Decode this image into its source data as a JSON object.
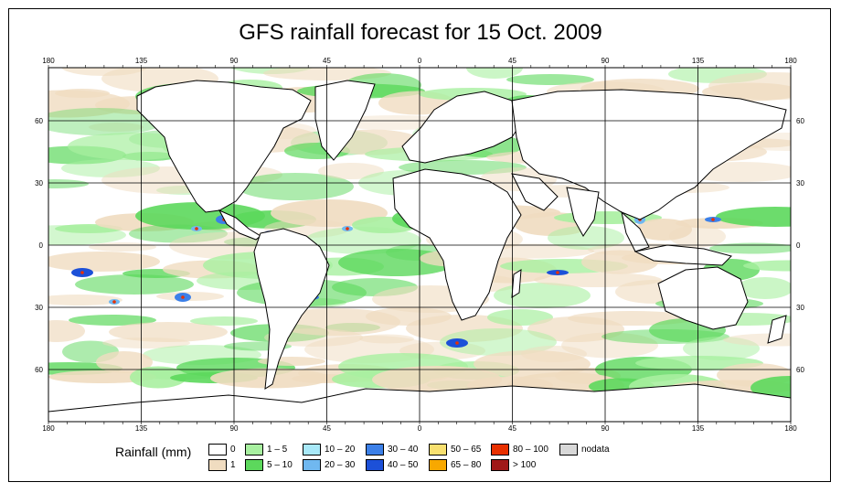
{
  "title": "GFS rainfall forecast for 15 Oct. 2009",
  "axes": {
    "lon_labels": [
      "180",
      "135",
      "90",
      "45",
      "0",
      "45",
      "90",
      "135",
      "180"
    ],
    "lat_labels": [
      "60",
      "30",
      "0",
      "30",
      "60"
    ]
  },
  "legend": {
    "title": "Rainfall (mm)",
    "items": [
      {
        "label": "0",
        "color": "#ffffff"
      },
      {
        "label": "1",
        "color": "#f0dcc0"
      },
      {
        "label": "1 – 5",
        "color": "#a8f0a0"
      },
      {
        "label": "5 – 10",
        "color": "#5cd85c"
      },
      {
        "label": "10 – 20",
        "color": "#a8e8f8"
      },
      {
        "label": "20 – 30",
        "color": "#70b8f0"
      },
      {
        "label": "30 – 40",
        "color": "#3c80e8"
      },
      {
        "label": "40 – 50",
        "color": "#1c50d8"
      },
      {
        "label": "50 – 65",
        "color": "#f8e070"
      },
      {
        "label": "65 – 80",
        "color": "#f8a800"
      },
      {
        "label": "80 – 100",
        "color": "#e83000"
      },
      {
        "label": "> 100",
        "color": "#a01818"
      },
      {
        "label": "nodata",
        "color": "#d8d8d8"
      }
    ]
  }
}
